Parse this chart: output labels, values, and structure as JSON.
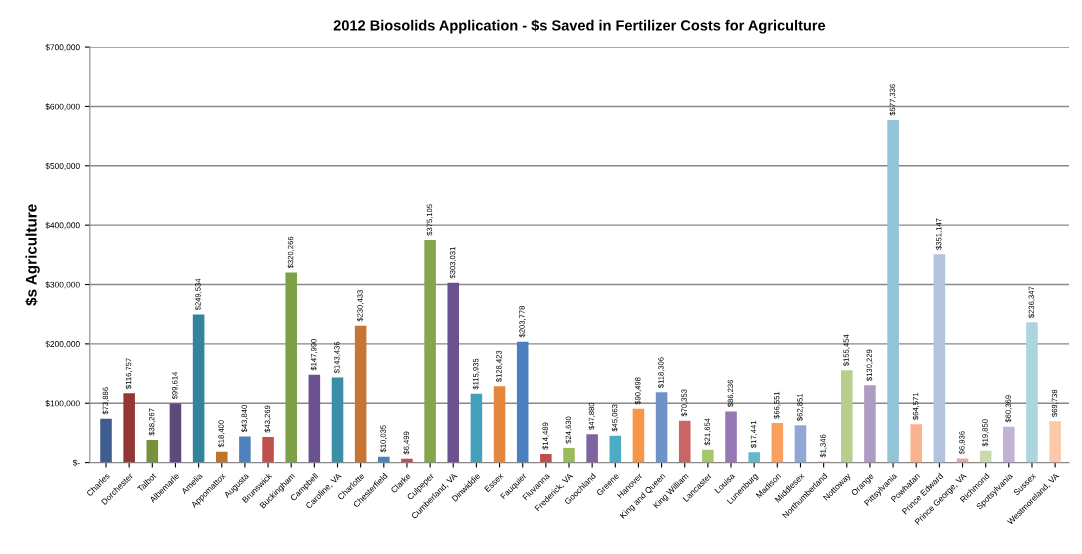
{
  "chart_data": {
    "type": "bar",
    "title": "2012 Biosolids Application - $s Saved in Fertilizer Costs for Agriculture",
    "ylabel": "$s Agriculture",
    "categories": [
      "Charles",
      "Dorchester",
      "Talbot",
      "Albemarle",
      "Amelia",
      "Appomattox",
      "Augusta",
      "Brunswick",
      "Buckingham",
      "Campbell",
      "Caroline, VA",
      "Charlotte",
      "Chesterfield",
      "Clarke",
      "Culpeper",
      "Cumberland, VA",
      "Dinwiddie",
      "Essex",
      "Fauquier",
      "Fluvanna",
      "Frederick, VA",
      "Goochland",
      "Greene",
      "Hanover",
      "King and Queen",
      "King William",
      "Lancaster",
      "Louisa",
      "Lunenburg",
      "Madison",
      "Middlesex",
      "Northumberland",
      "Nottoway",
      "Orange",
      "Pittsylvania",
      "Powhatan",
      "Prince Edward",
      "Prince George, VA",
      "Richmond",
      "Spotsylvania",
      "Sussex",
      "Westmoreland, VA"
    ],
    "values": [
      73886,
      116757,
      38267,
      99614,
      249534,
      18400,
      43840,
      43269,
      320266,
      147990,
      143436,
      230433,
      10035,
      6499,
      375105,
      303031,
      115935,
      128423,
      203778,
      14489,
      24630,
      47880,
      45063,
      90498,
      118306,
      70353,
      21654,
      86236,
      17441,
      66551,
      62851,
      1346,
      155454,
      130229,
      577336,
      64571,
      351147,
      6936,
      19850,
      60369,
      236347,
      69738
    ],
    "value_labels": [
      "$73,886",
      "$116,757",
      "$38,267",
      "$99,614",
      "$249,534",
      "$18,400",
      "$43,840",
      "$43,269",
      "$320,266",
      "$147,990",
      "$143,436",
      "$230,433",
      "$10,035",
      "$6,499",
      "$375,105",
      "$303,031",
      "$115,935",
      "$128,423",
      "$203,778",
      "$14,489",
      "$24,630",
      "$47,880",
      "$45,063",
      "$90,498",
      "$118,306",
      "$70,353",
      "$21,654",
      "$86,236",
      "$17,441",
      "$66,551",
      "$62,851",
      "$1,346",
      "$155,454",
      "$130,229",
      "$577,336",
      "$64,571",
      "$351,147",
      "$6,936",
      "$19,850",
      "$60,369",
      "$236,347",
      "$69,738"
    ],
    "colors": [
      "#3f5e8f",
      "#943634",
      "#76923c",
      "#5f497a",
      "#31849b",
      "#c0722e",
      "#4f81bd",
      "#c0504d",
      "#7f9f45",
      "#6b528f",
      "#3a8ea5",
      "#c87533",
      "#4f81bd",
      "#c0504d",
      "#85a64a",
      "#6b528f",
      "#44a0b8",
      "#e5883e",
      "#4a7fc0",
      "#c0504d",
      "#9bbb59",
      "#8064a2",
      "#4bacc6",
      "#f79646",
      "#6f93c9",
      "#c96565",
      "#a5c76b",
      "#9478b5",
      "#62b8cf",
      "#f9a060",
      "#90a8d5",
      "#d69090",
      "#b6cf8c",
      "#ad9cc4",
      "#93c4d7",
      "#fab38f",
      "#b2c2df",
      "#e2aaaa",
      "#c9dbad",
      "#c0b3d6",
      "#add5df",
      "#fbc8a9"
    ],
    "ylim": [
      0,
      700000
    ],
    "yticks": [
      {
        "value": 0,
        "label": "$-"
      },
      {
        "value": 100000,
        "label": "$100,000"
      },
      {
        "value": 200000,
        "label": "$200,000"
      },
      {
        "value": 300000,
        "label": "$300,000"
      },
      {
        "value": 400000,
        "label": "$400,000"
      },
      {
        "value": 500000,
        "label": "$500,000"
      },
      {
        "value": 600000,
        "label": "$600,000"
      },
      {
        "value": 700000,
        "label": "$700,000"
      }
    ],
    "grid": "y",
    "legend": false
  }
}
